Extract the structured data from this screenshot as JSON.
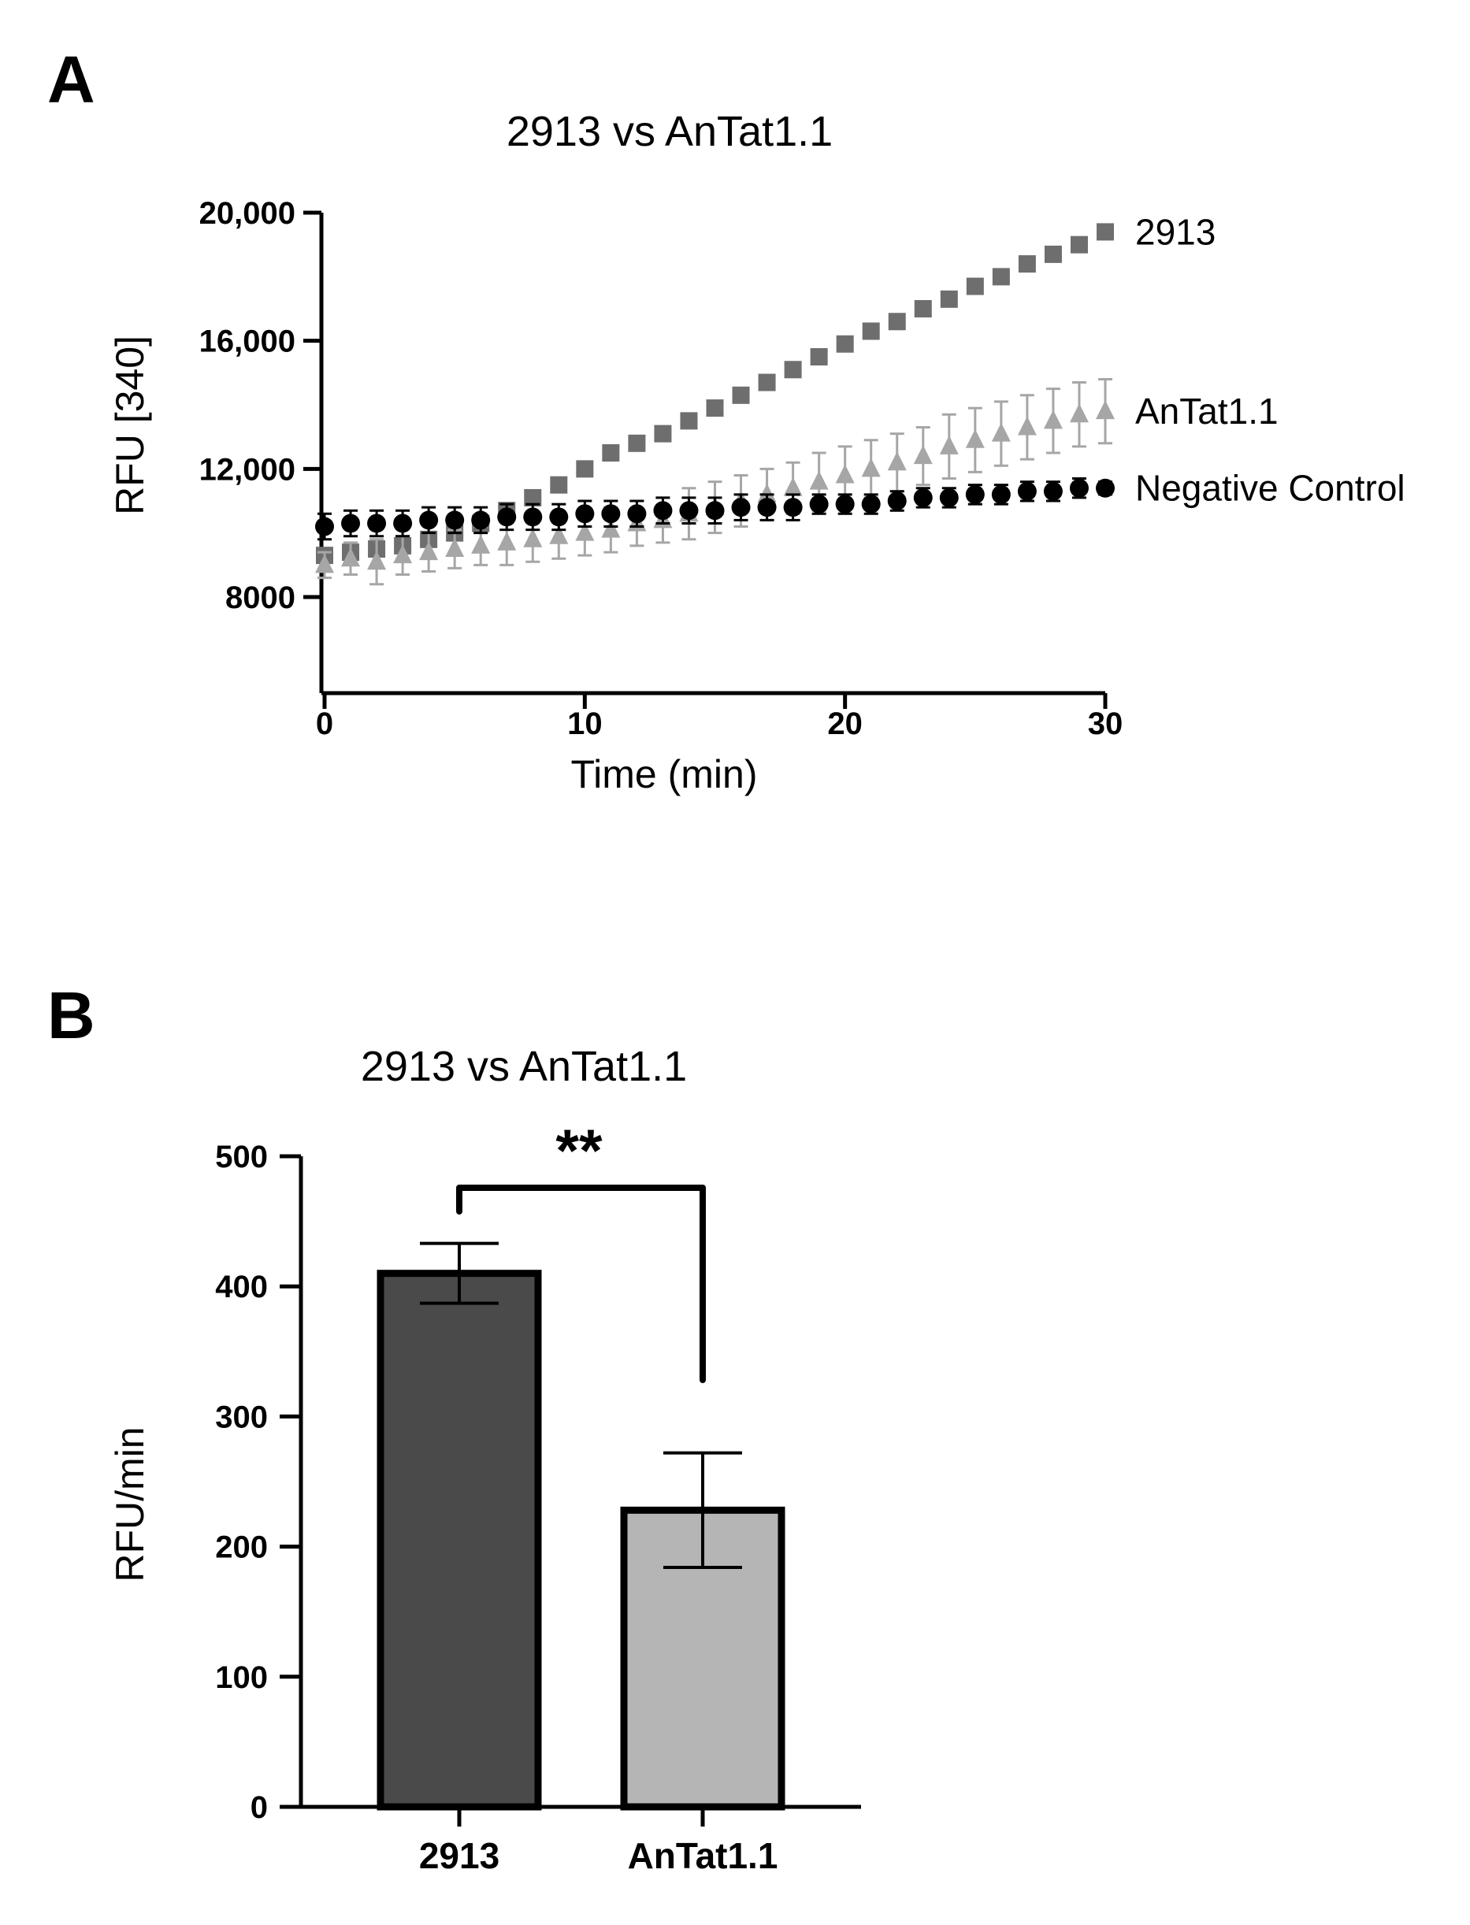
{
  "panels": {
    "a": {
      "letter": "A"
    },
    "b": {
      "letter": "B"
    }
  },
  "chart_data": [
    {
      "type": "scatter",
      "title": "2913 vs AnTat1.1",
      "xlabel": "Time (min)",
      "ylabel": "RFU [340]",
      "xlim": [
        0,
        30
      ],
      "ylim": [
        5000,
        20000
      ],
      "xticks": [
        0,
        10,
        20,
        30
      ],
      "xtick_labels": [
        "0",
        "10",
        "20",
        "30"
      ],
      "yticks": [
        8000,
        12000,
        16000,
        20000
      ],
      "ytick_labels": [
        "8000",
        "12,000",
        "16,000",
        "20,000"
      ],
      "grid": false,
      "legend": "series labels printed at right end of each series",
      "x": [
        0,
        1,
        2,
        3,
        4,
        5,
        6,
        7,
        8,
        9,
        10,
        11,
        12,
        13,
        14,
        15,
        16,
        17,
        18,
        19,
        20,
        21,
        22,
        23,
        24,
        25,
        26,
        27,
        28,
        29,
        30
      ],
      "series": [
        {
          "name": "2913",
          "marker": "square",
          "color": "#6e6e6e",
          "values": [
            9300,
            9400,
            9500,
            9600,
            9800,
            10000,
            10300,
            10700,
            11100,
            11500,
            12000,
            12500,
            12800,
            13100,
            13500,
            13900,
            14300,
            14700,
            15100,
            15500,
            15900,
            16300,
            16600,
            17000,
            17300,
            17700,
            18000,
            18400,
            18700,
            19000,
            19400
          ],
          "errors": [
            200,
            150,
            150,
            150,
            150,
            150,
            150,
            150,
            150,
            150,
            150,
            150,
            150,
            150,
            150,
            150,
            150,
            150,
            150,
            150,
            150,
            150,
            150,
            150,
            150,
            150,
            150,
            150,
            150,
            150,
            150
          ]
        },
        {
          "name": "AnTat1.1",
          "marker": "triangle",
          "color": "#a6a6a6",
          "values": [
            9000,
            9200,
            9100,
            9300,
            9400,
            9500,
            9600,
            9700,
            9800,
            9900,
            10000,
            10100,
            10300,
            10400,
            10600,
            10800,
            11000,
            11200,
            11400,
            11600,
            11800,
            12000,
            12200,
            12400,
            12700,
            12900,
            13100,
            13300,
            13500,
            13700,
            13800
          ],
          "errors": [
            400,
            500,
            700,
            600,
            600,
            600,
            600,
            700,
            700,
            700,
            700,
            700,
            700,
            700,
            800,
            800,
            800,
            800,
            800,
            900,
            900,
            900,
            900,
            900,
            1000,
            1000,
            1000,
            1000,
            1000,
            1000,
            1000
          ]
        },
        {
          "name": "Negative Control",
          "marker": "circle",
          "color": "#000000",
          "values": [
            10200,
            10300,
            10300,
            10300,
            10400,
            10400,
            10400,
            10500,
            10500,
            10500,
            10600,
            10600,
            10600,
            10700,
            10700,
            10700,
            10800,
            10800,
            10800,
            10900,
            10900,
            10900,
            11000,
            11100,
            11100,
            11200,
            11200,
            11300,
            11300,
            11400,
            11400
          ],
          "errors": [
            400,
            400,
            400,
            400,
            400,
            400,
            400,
            400,
            400,
            400,
            400,
            400,
            400,
            400,
            400,
            400,
            400,
            400,
            400,
            300,
            300,
            300,
            300,
            300,
            300,
            300,
            300,
            300,
            300,
            300,
            200
          ]
        }
      ]
    },
    {
      "type": "bar",
      "title": "2913 vs AnTat1.1",
      "xlabel": "",
      "ylabel": "RFU/min",
      "ylim": [
        0,
        500
      ],
      "yticks": [
        0,
        100,
        200,
        300,
        400,
        500
      ],
      "ytick_labels": [
        "0",
        "100",
        "200",
        "300",
        "400",
        "500"
      ],
      "grid": false,
      "categories": [
        "2913",
        "AnTat1.1"
      ],
      "values": [
        410,
        228
      ],
      "errors": [
        23,
        44
      ],
      "colors": [
        "#4a4a4a",
        "#b5b5b5"
      ],
      "significance": "**"
    }
  ]
}
